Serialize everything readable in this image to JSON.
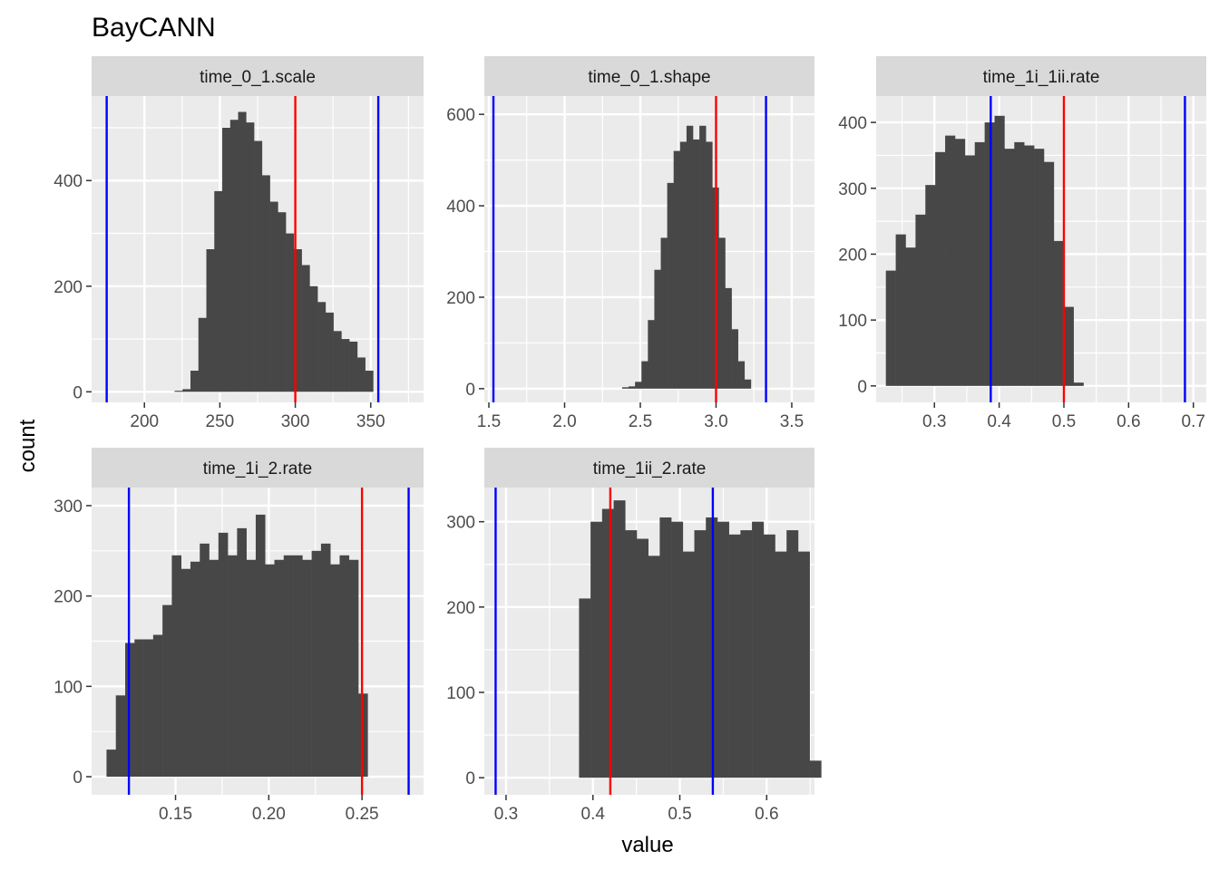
{
  "chart_data": {
    "type": "bar",
    "subtype": "faceted-histogram",
    "title": "BayCANN",
    "xlabel": "value",
    "ylabel": "count",
    "colors": {
      "panel_background": "#EBEBEB",
      "grid": "#FFFFFF",
      "strip_background": "#D9D9D9",
      "bar_fill": "#474747",
      "prior_bound_line": "#0000FF",
      "reference_line": "#FF0000"
    },
    "facets": [
      {
        "label": "time_0_1.scale",
        "bin_start": 220,
        "bin_width": 5.263,
        "counts": [
          2,
          5,
          40,
          140,
          270,
          380,
          500,
          515,
          530,
          510,
          475,
          410,
          360,
          340,
          300,
          270,
          240,
          200,
          170,
          150,
          115,
          100,
          95,
          65,
          40
        ],
        "x_range": [
          165,
          385
        ],
        "x_ticks": [
          200,
          250,
          300,
          350
        ],
        "x_tick_labels": [
          "200",
          "250",
          "300",
          "350"
        ],
        "y_range": [
          -20,
          560
        ],
        "y_ticks": [
          0,
          200,
          400
        ],
        "y_tick_labels": [
          "0",
          "200",
          "400"
        ],
        "blue_lines": [
          175,
          355
        ],
        "red_lines": [
          300
        ]
      },
      {
        "label": "time_0_1.shape",
        "bin_start": 2.38,
        "bin_width": 0.0425,
        "counts": [
          3,
          5,
          15,
          60,
          150,
          260,
          330,
          450,
          520,
          540,
          575,
          545,
          575,
          540,
          440,
          330,
          220,
          130,
          60,
          20
        ],
        "x_range": [
          1.47,
          3.65
        ],
        "x_ticks": [
          1.5,
          2.0,
          2.5,
          3.0,
          3.5
        ],
        "x_tick_labels": [
          "1.5",
          "2.0",
          "2.5",
          "3.0",
          "3.5"
        ],
        "y_range": [
          -30,
          640
        ],
        "y_ticks": [
          0,
          200,
          400,
          600
        ],
        "y_tick_labels": [
          "0",
          "200",
          "400",
          "600"
        ],
        "blue_lines": [
          1.53,
          3.33
        ],
        "red_lines": [
          3.0
        ]
      },
      {
        "label": "time_1i_1ii.rate",
        "bin_start": 0.225,
        "bin_width": 0.01526,
        "counts": [
          175,
          230,
          210,
          260,
          305,
          355,
          380,
          375,
          350,
          370,
          400,
          410,
          360,
          370,
          365,
          360,
          340,
          220,
          120,
          5
        ],
        "x_range": [
          0.21,
          0.72
        ],
        "x_ticks": [
          0.3,
          0.4,
          0.5,
          0.6,
          0.7
        ],
        "x_tick_labels": [
          "0.3",
          "0.4",
          "0.5",
          "0.6",
          "0.7"
        ],
        "y_range": [
          -25,
          440
        ],
        "y_ticks": [
          0,
          100,
          200,
          300,
          400
        ],
        "y_tick_labels": [
          "0",
          "100",
          "200",
          "300",
          "400"
        ],
        "blue_lines": [
          0.387,
          0.687
        ],
        "red_lines": [
          0.5
        ]
      },
      {
        "label": "time_1i_2.rate",
        "bin_start": 0.113,
        "bin_width": 0.005,
        "counts": [
          30,
          90,
          148,
          152,
          152,
          157,
          190,
          245,
          230,
          238,
          258,
          240,
          270,
          245,
          275,
          240,
          290,
          235,
          240,
          245,
          245,
          240,
          250,
          258,
          235,
          245,
          240,
          92
        ],
        "x_range": [
          0.105,
          0.283
        ],
        "x_ticks": [
          0.15,
          0.2,
          0.25
        ],
        "x_tick_labels": [
          "0.15",
          "0.20",
          "0.25"
        ],
        "y_range": [
          -20,
          320
        ],
        "y_ticks": [
          0,
          100,
          200,
          300
        ],
        "y_tick_labels": [
          "0",
          "100",
          "200",
          "300"
        ],
        "blue_lines": [
          0.125,
          0.275
        ],
        "red_lines": [
          0.25
        ]
      },
      {
        "label": "time_1ii_2.rate",
        "bin_start": 0.384,
        "bin_width": 0.01327,
        "counts": [
          210,
          300,
          315,
          325,
          290,
          280,
          260,
          305,
          300,
          265,
          290,
          305,
          300,
          285,
          290,
          300,
          285,
          265,
          290,
          265,
          20
        ],
        "x_range": [
          0.275,
          0.655
        ],
        "x_ticks": [
          0.3,
          0.4,
          0.5,
          0.6
        ],
        "x_tick_labels": [
          "0.3",
          "0.4",
          "0.5",
          "0.6"
        ],
        "y_range": [
          -20,
          340
        ],
        "y_ticks": [
          0,
          100,
          200,
          300
        ],
        "y_tick_labels": [
          "0",
          "100",
          "200",
          "300"
        ],
        "blue_lines": [
          0.288,
          0.538
        ],
        "red_lines": [
          0.42
        ]
      }
    ]
  }
}
